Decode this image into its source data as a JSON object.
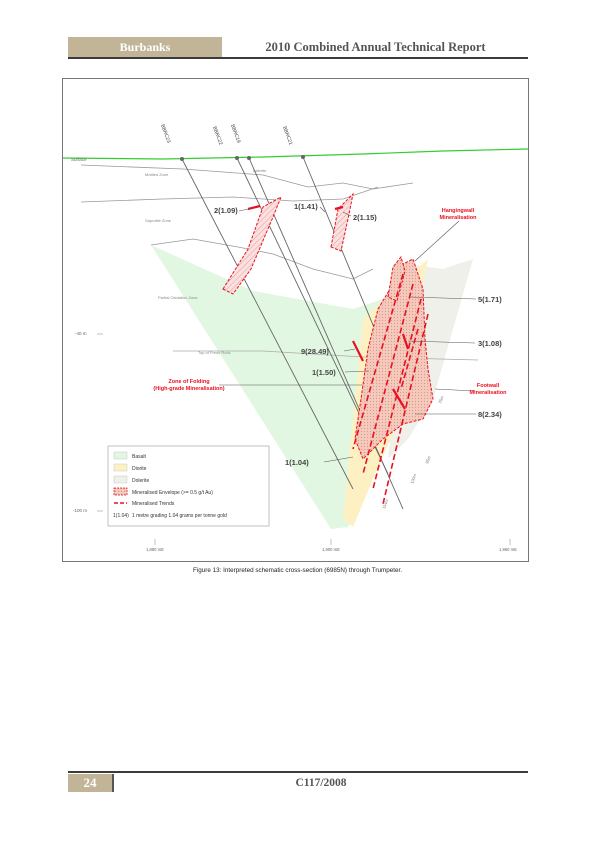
{
  "header": {
    "left": "Burbanks",
    "right": "2010 Combined Annual Technical Report"
  },
  "footer": {
    "page_number": "24",
    "code": "C117/2008"
  },
  "caption": "Figure 13: Interpreted schematic cross-section (6985N) through Trumpeter.",
  "figure": {
    "drillholes": [
      "BBRC23",
      "BBRC22",
      "BBRC19",
      "BBRC21"
    ],
    "surface_label": "Surface",
    "zones": [
      "Mottled Zone",
      "Laterite",
      "Saprolite Zone",
      "Partial Oxidation Zone",
      "Top of Fresh Rock"
    ],
    "depth_labels": [
      "-40 m",
      "-100 m"
    ],
    "easting_labels": [
      "1,880 mE",
      "1,900 mE",
      "1,960 mE"
    ],
    "hole_depths": [
      "75m",
      "95m",
      "114m",
      "100m"
    ],
    "intercepts": [
      "2(1.09)",
      "1(1.41)",
      "2(1.15)",
      "5(1.71)",
      "3(1.08)",
      "9(28.49)",
      "1(1.50)",
      "8(2.34)",
      "1(1.04)"
    ],
    "annotations": {
      "hangingwall": [
        "Hangingwall",
        "Mineralisation"
      ],
      "footwall": [
        "Footwall",
        "Mineralisation"
      ],
      "folding": [
        "Zone of Folding",
        "(High-grade Mineralisation)"
      ]
    },
    "legend": {
      "items": [
        "Basalt",
        "Diorite",
        "Dolerite",
        "Mineralised Envelope (>= 0.5 g/t Au)",
        "Mineralised Trends"
      ],
      "example_code": "1(1.04)",
      "example_text": "1 metre grading 1.04 grams per tonne gold"
    },
    "colors": {
      "basalt": "#e2f7e2",
      "diorite": "#fdf3c8",
      "dolerite": "#eef0e6",
      "mineralised": "#e8111f",
      "surface": "#33cc33"
    }
  }
}
